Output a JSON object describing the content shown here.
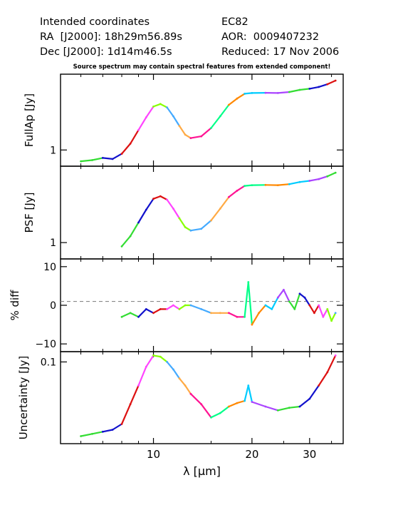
{
  "header": {
    "left": [
      "Intended coordinates",
      "RA  [J2000]: 18h29m56.89s",
      "Dec [J2000]: 1d14m46.5s"
    ],
    "right": [
      "EC82",
      "AOR:  0009407232",
      "Reduced: 17 Nov 2006"
    ]
  },
  "warning": "Source spectrum may contain spectral features from extended component!",
  "colors": {
    "segments": [
      "#33dd33",
      "#1111cc",
      "#dd1111",
      "#ff44ff",
      "#88ff00",
      "#44aaff",
      "#ffaa44",
      "#ff1493",
      "#00ff88",
      "#ff8800",
      "#00ccff",
      "#aa44ff"
    ],
    "reference_line": "#888888"
  },
  "chart_data": [
    {
      "type": "line",
      "ylabel": "FullAp [Jy]",
      "yscale": "log",
      "ylim": [
        0.7,
        5.3
      ],
      "yticks": [
        {
          "value": 1,
          "label": "1"
        }
      ],
      "x": [
        6.0,
        6.5,
        7.0,
        7.5,
        8.0,
        8.5,
        9.0,
        9.5,
        10.0,
        10.5,
        11.0,
        11.5,
        12.0,
        12.5,
        13.0,
        14.0,
        15.0,
        16.0,
        17.0,
        18.0,
        19.0,
        20.0,
        22.0,
        24.0,
        26.0,
        28.0,
        30.0,
        32.0,
        34.0,
        36.0
      ],
      "y": [
        0.78,
        0.8,
        0.84,
        0.82,
        0.92,
        1.15,
        1.55,
        2.05,
        2.6,
        2.75,
        2.55,
        2.1,
        1.7,
        1.4,
        1.3,
        1.35,
        1.62,
        2.1,
        2.7,
        3.1,
        3.45,
        3.5,
        3.52,
        3.5,
        3.58,
        3.75,
        3.85,
        4.0,
        4.25,
        4.6
      ]
    },
    {
      "type": "line",
      "ylabel": "PSF [Jy]",
      "yscale": "log",
      "ylim": [
        0.7,
        5.3
      ],
      "yticks": [
        {
          "value": 1,
          "label": "1"
        }
      ],
      "x": [
        8.0,
        8.5,
        9.0,
        9.5,
        10.0,
        10.5,
        11.0,
        11.5,
        12.0,
        12.5,
        13.0,
        14.0,
        15.0,
        16.0,
        17.0,
        18.0,
        19.0,
        20.0,
        22.0,
        24.0,
        26.0,
        28.0,
        30.0,
        32.0,
        34.0,
        36.0
      ],
      "y": [
        0.92,
        1.15,
        1.55,
        2.05,
        2.6,
        2.75,
        2.55,
        2.1,
        1.7,
        1.4,
        1.3,
        1.35,
        1.62,
        2.1,
        2.7,
        3.1,
        3.45,
        3.5,
        3.52,
        3.5,
        3.58,
        3.75,
        3.85,
        4.0,
        4.25,
        4.6
      ]
    },
    {
      "type": "line",
      "ylabel": "% diff",
      "yscale": "linear",
      "ylim": [
        -12,
        12
      ],
      "yticks": [
        {
          "value": 10,
          "label": "10"
        },
        {
          "value": 0,
          "label": "0"
        },
        {
          "value": -10,
          "label": "−10"
        }
      ],
      "reference_y": 1,
      "x": [
        8.0,
        8.5,
        9.0,
        9.5,
        10.0,
        10.5,
        11.0,
        11.5,
        12.0,
        12.5,
        13.0,
        14.0,
        15.0,
        16.0,
        17.0,
        18.0,
        19.0,
        19.5,
        20.0,
        21.0,
        22.0,
        23.0,
        24.0,
        25.0,
        26.0,
        27.0,
        28.0,
        29.0,
        30.0,
        31.0,
        32.0,
        33.0,
        34.0,
        35.0,
        36.0
      ],
      "y": [
        -3,
        -2,
        -3,
        -1,
        -2,
        -1,
        -1,
        0,
        -1,
        0,
        0,
        -1,
        -2,
        -2,
        -2,
        -3,
        -3,
        6,
        -5,
        -2,
        0,
        -1,
        2,
        4,
        1,
        -1,
        3,
        2,
        0,
        -2,
        0,
        -3,
        -1,
        -4,
        -2
      ]
    },
    {
      "type": "line",
      "ylabel": "Uncertainty [Jy]",
      "xlabel": "λ [μm]",
      "yscale": "log",
      "ylim": [
        0.017,
        0.125
      ],
      "yticks": [
        {
          "value": 0.1,
          "label": "0.1"
        }
      ],
      "xscale": "log",
      "xlim": [
        5.2,
        38.0
      ],
      "xticks": [
        {
          "value": 10,
          "label": "10"
        },
        {
          "value": 20,
          "label": "20"
        },
        {
          "value": 30,
          "label": "30"
        }
      ],
      "x": [
        6.0,
        6.5,
        7.0,
        7.5,
        8.0,
        8.5,
        9.0,
        9.5,
        10.0,
        10.5,
        11.0,
        11.5,
        12.0,
        12.5,
        13.0,
        14.0,
        15.0,
        16.0,
        17.0,
        18.0,
        19.0,
        19.5,
        20.0,
        22.0,
        24.0,
        26.0,
        28.0,
        30.0,
        32.0,
        34.0,
        36.0
      ],
      "y": [
        0.02,
        0.021,
        0.022,
        0.023,
        0.026,
        0.04,
        0.06,
        0.09,
        0.115,
        0.112,
        0.1,
        0.085,
        0.07,
        0.06,
        0.05,
        0.04,
        0.03,
        0.033,
        0.038,
        0.041,
        0.043,
        0.06,
        0.042,
        0.038,
        0.035,
        0.037,
        0.038,
        0.045,
        0.06,
        0.08,
        0.115
      ]
    }
  ]
}
